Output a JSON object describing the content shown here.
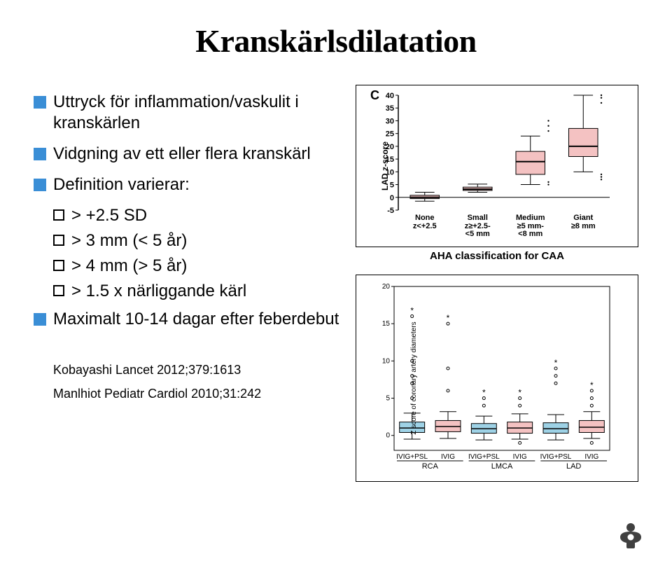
{
  "title": "Kranskärlsdilatation",
  "bullets": [
    {
      "text": "Uttryck för inflammation/vaskulit i kranskärlen"
    },
    {
      "text": "Vidgning av ett eller flera kranskärl"
    },
    {
      "text": "Definition varierar:",
      "subs": [
        "> +2.5 SD",
        "> 3 mm (< 5 år)",
        "> 4 mm (> 5 år)",
        "> 1.5 x närliggande kärl"
      ]
    },
    {
      "text": "Maximalt 10-14 dagar efter feberdebut"
    }
  ],
  "refs": [
    "Kobayashi Lancet 2012;379:1613",
    "Manlhiot Pediatr Cardiol 2010;31:242"
  ],
  "chart_top": {
    "type": "boxplot",
    "panel_label": "C",
    "ylabel": "LAD z-score",
    "subtitle": "AHA classification for CAA",
    "ylim": [
      -5,
      40
    ],
    "ytick_step": 5,
    "yticks": [
      -5,
      0,
      5,
      10,
      15,
      20,
      25,
      30,
      35,
      40
    ],
    "groups": [
      {
        "label1": "None",
        "label2": "z<+2.5",
        "q1": -0.5,
        "med": 0,
        "q3": 0.8,
        "wl": -1.5,
        "wh": 2.0,
        "fill": "#f4c2c2"
      },
      {
        "label1": "Small",
        "label2": "z≥+2.5-\n<5 mm",
        "q1": 2.7,
        "med": 3.2,
        "q3": 4.0,
        "wl": 2.0,
        "wh": 5.2,
        "fill": "#f4c2c2"
      },
      {
        "label1": "Medium",
        "label2": "≥5 mm-\n<8 mm",
        "q1": 9,
        "med": 14,
        "q3": 18,
        "wl": 5,
        "wh": 24,
        "fill": "#f4c2c2"
      },
      {
        "label1": "Giant",
        "label2": "≥8 mm",
        "q1": 16,
        "med": 20,
        "q3": 27,
        "wl": 10,
        "wh": 40,
        "fill": "#f4c2c2"
      }
    ],
    "box_width": 0.55,
    "axis_color": "#000000",
    "background_color": "#ffffff",
    "label_fontsize": 11,
    "panel_label_fontsize": 18
  },
  "chart_bot": {
    "type": "grouped-boxplot",
    "ylabel": "Z score of coronary artery diameters",
    "ylim": [
      -2,
      20
    ],
    "yticks": [
      0,
      5,
      10,
      15,
      20
    ],
    "arteries": [
      "RCA",
      "LMCA",
      "LAD"
    ],
    "subgroups": [
      "IVIG+PSL",
      "IVIG"
    ],
    "boxes": [
      {
        "artery": "RCA",
        "sub": "IVIG+PSL",
        "q1": 0.4,
        "med": 1.0,
        "q3": 1.8,
        "wl": -0.5,
        "wh": 3.0,
        "out": [
          5,
          7,
          8,
          10,
          16
        ],
        "fill": "#9ed2e6"
      },
      {
        "artery": "RCA",
        "sub": "IVIG",
        "q1": 0.5,
        "med": 1.2,
        "q3": 2.0,
        "wl": -0.4,
        "wh": 3.2,
        "out": [
          6,
          9,
          15
        ],
        "fill": "#f4c2c2"
      },
      {
        "artery": "LMCA",
        "sub": "IVIG+PSL",
        "q1": 0.3,
        "med": 0.9,
        "q3": 1.6,
        "wl": -0.6,
        "wh": 2.6,
        "out": [
          4,
          5
        ],
        "fill": "#9ed2e6"
      },
      {
        "artery": "LMCA",
        "sub": "IVIG",
        "q1": 0.3,
        "med": 1.0,
        "q3": 1.8,
        "wl": -0.5,
        "wh": 2.9,
        "out": [
          4,
          5,
          -1
        ],
        "fill": "#f4c2c2"
      },
      {
        "artery": "LAD",
        "sub": "IVIG+PSL",
        "q1": 0.3,
        "med": 0.9,
        "q3": 1.7,
        "wl": -0.6,
        "wh": 2.8,
        "out": [
          7,
          8,
          9
        ],
        "fill": "#9ed2e6"
      },
      {
        "artery": "LAD",
        "sub": "IVIG",
        "q1": 0.4,
        "med": 1.1,
        "q3": 2.0,
        "wl": -0.4,
        "wh": 3.2,
        "out": [
          4,
          5,
          6,
          -1
        ],
        "fill": "#f4c2c2"
      }
    ],
    "box_width": 0.7,
    "axis_color": "#000000",
    "background_color": "#ffffff",
    "label_fontsize": 10,
    "star_symbol": "*"
  },
  "logo_color": "#404040"
}
